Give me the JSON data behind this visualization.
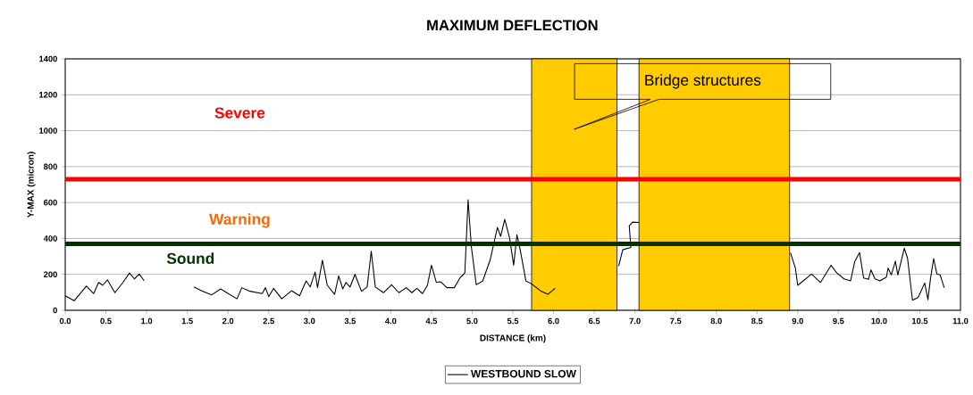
{
  "chart_data": {
    "type": "line",
    "title": "MAXIMUM DEFLECTION",
    "xlabel": "DISTANCE (km)",
    "ylabel": "Y-MAX (micron)",
    "xlim": [
      0,
      11
    ],
    "ylim": [
      0,
      1400
    ],
    "xticks": [
      {
        "value": 0,
        "label": "0.0"
      },
      {
        "value": 0.5,
        "label": "0.5"
      },
      {
        "value": 1,
        "label": "1.0"
      },
      {
        "value": 1.5,
        "label": "1.5"
      },
      {
        "value": 2,
        "label": "2.0"
      },
      {
        "value": 2.5,
        "label": "2.5"
      },
      {
        "value": 3,
        "label": "3.0"
      },
      {
        "value": 3.5,
        "label": "3.5"
      },
      {
        "value": 4,
        "label": "4.0"
      },
      {
        "value": 4.5,
        "label": "4.5"
      },
      {
        "value": 5,
        "label": "5.0"
      },
      {
        "value": 5.5,
        "label": "5.5"
      },
      {
        "value": 6,
        "label": "6.0"
      },
      {
        "value": 6.5,
        "label": "6.5"
      },
      {
        "value": 7,
        "label": "7.0"
      },
      {
        "value": 7.5,
        "label": "7.5"
      },
      {
        "value": 8,
        "label": "8.0"
      },
      {
        "value": 8.5,
        "label": "8.5"
      },
      {
        "value": 9,
        "label": "9.0"
      },
      {
        "value": 9.5,
        "label": "9.5"
      },
      {
        "value": 10,
        "label": "10.0"
      },
      {
        "value": 10.5,
        "label": "10.5"
      },
      {
        "value": 11,
        "label": "11.0"
      }
    ],
    "yticks": [
      0,
      200,
      400,
      600,
      800,
      1000,
      1200,
      1400
    ],
    "grid": "y",
    "legend": "bottom",
    "marker": "none",
    "series": [
      {
        "name": "WESTBOUND SLOW",
        "color": "#000000",
        "line_style": "solid",
        "x": [
          0.0,
          0.11,
          0.26,
          0.35,
          0.41,
          0.46,
          0.52,
          0.61,
          0.71,
          0.79,
          0.85,
          0.91,
          0.97,
          1.27,
          1.58,
          1.69,
          1.8,
          1.91,
          2.11,
          2.17,
          2.27,
          2.42,
          2.46,
          2.5,
          2.56,
          2.66,
          2.78,
          2.88,
          2.96,
          3.01,
          3.07,
          3.1,
          3.16,
          3.22,
          3.31,
          3.36,
          3.41,
          3.45,
          3.5,
          3.56,
          3.64,
          3.71,
          3.76,
          3.81,
          3.91,
          4.01,
          4.1,
          4.19,
          4.26,
          4.32,
          4.39,
          4.45,
          4.5,
          4.56,
          4.61,
          4.69,
          4.78,
          4.85,
          4.91,
          4.95,
          4.99,
          5.05,
          5.13,
          5.22,
          5.31,
          5.35,
          5.4,
          5.46,
          5.51,
          5.55,
          5.59,
          5.66,
          5.73,
          5.85,
          5.93,
          6.02,
          6.4,
          6.8,
          6.85,
          6.95,
          6.93,
          6.97,
          7.05,
          8.0,
          8.91,
          8.97,
          9.0,
          9.17,
          9.28,
          9.41,
          9.48,
          9.57,
          9.65,
          9.7,
          9.76,
          9.81,
          9.87,
          9.9,
          9.95,
          10.01,
          10.09,
          10.11,
          10.15,
          10.2,
          10.23,
          10.31,
          10.35,
          10.41,
          10.48,
          10.56,
          10.6,
          10.63,
          10.67,
          10.71,
          10.75,
          10.8
        ],
        "values": [
          81,
          53,
          135,
          93,
          155,
          139,
          169,
          98,
          155,
          208,
          175,
          202,
          164,
          null,
          130,
          106,
          86,
          119,
          64,
          126,
          106,
          93,
          126,
          76,
          122,
          64,
          109,
          81,
          164,
          130,
          213,
          126,
          279,
          139,
          89,
          192,
          119,
          155,
          130,
          200,
          106,
          130,
          329,
          130,
          98,
          142,
          98,
          126,
          98,
          122,
          93,
          139,
          251,
          155,
          159,
          126,
          126,
          180,
          208,
          615,
          354,
          142,
          164,
          279,
          461,
          412,
          506,
          403,
          251,
          420,
          337,
          164,
          147,
          105,
          89,
          122,
          null,
          246,
          337,
          350,
          470,
          491,
          489,
          null,
          321,
          238,
          139,
          202,
          155,
          251,
          208,
          175,
          164,
          271,
          321,
          180,
          172,
          225,
          175,
          164,
          185,
          235,
          197,
          274,
          197,
          346,
          288,
          56,
          72,
          152,
          59,
          172,
          288,
          202,
          197,
          126
        ]
      }
    ],
    "ref_lines": [
      {
        "axis": "y",
        "value": 730,
        "color": "#ff0000",
        "line_style": "solid"
      },
      {
        "axis": "y",
        "value": 370,
        "color": "#003300",
        "line_style": "solid"
      }
    ],
    "bands": [
      {
        "axis": "x",
        "from": 5.73,
        "to": 6.78,
        "color": "#ffcc00"
      },
      {
        "axis": "x",
        "from": 7.05,
        "to": 8.9,
        "color": "#ffcc00"
      }
    ],
    "annotations": [
      "Severe",
      "Warning",
      "Sound",
      "Bridge structures"
    ]
  }
}
